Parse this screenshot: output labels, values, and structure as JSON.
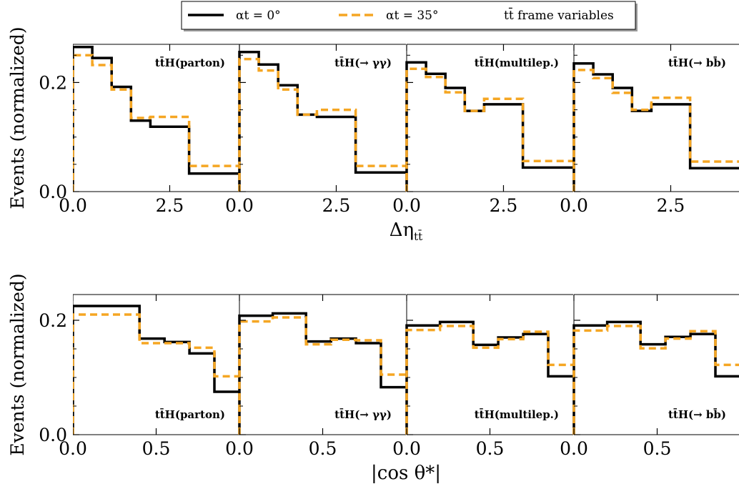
{
  "colors": {
    "alpha0": "#000000",
    "alpha35": "#f5a623"
  },
  "legend": {
    "entries": [
      {
        "label": "αt = 0°",
        "style": "solid",
        "color": "#000000"
      },
      {
        "label": "αt = 35°",
        "style": "dashed",
        "color": "#f5a623"
      }
    ],
    "note": "tt̄ frame variables",
    "placement": "top-center"
  },
  "rows": [
    {
      "ylabel": "Events (normalized)",
      "xlabel": "Δη",
      "xlabel_sub": "tt̄"
    },
    {
      "ylabel": "Events (normalized)",
      "xlabel": "|cos θ*|",
      "xlabel_sub": ""
    }
  ],
  "chart_data": [
    {
      "type": "step",
      "xlabel": "Δη tt̄",
      "ylabel": "Events (normalized)",
      "xlim": [
        0,
        4.3
      ],
      "ylim": [
        0,
        0.27
      ],
      "xticks": [
        0.0,
        2.5
      ],
      "xtick_labels": [
        "0.0",
        "2.5"
      ],
      "yticks": [
        0.0,
        0.2
      ],
      "ytick_labels": [
        "0.0",
        "0.2"
      ],
      "panels": [
        {
          "label": "tt̄H(parton)",
          "label_pos": "top",
          "edges": [
            0,
            0.5,
            1.0,
            1.5,
            2.0,
            3.0,
            4.3
          ],
          "series": [
            {
              "name": "αt = 0°",
              "values": [
                0.265,
                0.245,
                0.192,
                0.13,
                0.119,
                0.033
              ]
            },
            {
              "name": "αt = 35°",
              "values": [
                0.25,
                0.232,
                0.187,
                0.135,
                0.137,
                0.047
              ]
            }
          ]
        },
        {
          "label": "tt̄H(→ γγ)",
          "label_pos": "top",
          "edges": [
            0,
            0.5,
            1.0,
            1.5,
            2.0,
            3.0,
            4.3
          ],
          "series": [
            {
              "name": "αt = 0°",
              "values": [
                0.256,
                0.233,
                0.195,
                0.141,
                0.137,
                0.035
              ]
            },
            {
              "name": "αt = 35°",
              "values": [
                0.243,
                0.222,
                0.187,
                0.141,
                0.15,
                0.047
              ]
            }
          ]
        },
        {
          "label": "tt̄H(multilep.)",
          "label_pos": "top",
          "edges": [
            0,
            0.5,
            1.0,
            1.5,
            2.0,
            3.0,
            4.3
          ],
          "series": [
            {
              "name": "αt = 0°",
              "values": [
                0.237,
                0.216,
                0.19,
                0.148,
                0.16,
                0.044
              ]
            },
            {
              "name": "αt = 35°",
              "values": [
                0.225,
                0.21,
                0.182,
                0.148,
                0.17,
                0.056
              ]
            }
          ]
        },
        {
          "label": "tt̄H(→ bb̄)",
          "label_pos": "top",
          "edges": [
            0,
            0.5,
            1.0,
            1.5,
            2.0,
            3.0,
            4.3
          ],
          "series": [
            {
              "name": "αt = 0°",
              "values": [
                0.235,
                0.215,
                0.19,
                0.148,
                0.16,
                0.043
              ]
            },
            {
              "name": "αt = 35°",
              "values": [
                0.223,
                0.208,
                0.181,
                0.15,
                0.172,
                0.055
              ]
            }
          ]
        }
      ]
    },
    {
      "type": "step",
      "xlabel": "|cos θ*|",
      "ylabel": "Events (normalized)",
      "xlim": [
        0,
        1.0
      ],
      "ylim": [
        0,
        0.245
      ],
      "xticks": [
        0.0,
        0.5
      ],
      "xtick_labels": [
        "0.0",
        "0.5"
      ],
      "yticks": [
        0.0,
        0.2
      ],
      "ytick_labels": [
        "0.0",
        "0.2"
      ],
      "panels": [
        {
          "label": "tt̄H(parton)",
          "label_pos": "bottom",
          "edges": [
            0,
            0.2,
            0.4,
            0.55,
            0.7,
            0.85,
            1.0
          ],
          "series": [
            {
              "name": "αt = 0°",
              "values": [
                0.225,
                0.225,
                0.168,
                0.162,
                0.142,
                0.075
              ]
            },
            {
              "name": "αt = 35°",
              "values": [
                0.21,
                0.21,
                0.16,
                0.16,
                0.152,
                0.102
              ]
            }
          ]
        },
        {
          "label": "tt̄H(→ γγ)",
          "label_pos": "bottom",
          "edges": [
            0,
            0.2,
            0.4,
            0.55,
            0.7,
            0.85,
            1.0
          ],
          "series": [
            {
              "name": "αt = 0°",
              "values": [
                0.208,
                0.212,
                0.163,
                0.168,
                0.16,
                0.083
              ]
            },
            {
              "name": "αt = 35°",
              "values": [
                0.198,
                0.205,
                0.158,
                0.166,
                0.165,
                0.105
              ]
            }
          ]
        },
        {
          "label": "tt̄H(multilep.)",
          "label_pos": "bottom",
          "edges": [
            0,
            0.2,
            0.4,
            0.55,
            0.7,
            0.85,
            1.0
          ],
          "series": [
            {
              "name": "αt = 0°",
              "values": [
                0.191,
                0.197,
                0.157,
                0.17,
                0.176,
                0.102
              ]
            },
            {
              "name": "αt = 35°",
              "values": [
                0.183,
                0.19,
                0.152,
                0.167,
                0.18,
                0.122
              ]
            }
          ]
        },
        {
          "label": "tt̄H(→ bb̄)",
          "label_pos": "bottom",
          "edges": [
            0,
            0.2,
            0.4,
            0.55,
            0.7,
            0.85,
            1.0
          ],
          "series": [
            {
              "name": "αt = 0°",
              "values": [
                0.191,
                0.197,
                0.158,
                0.171,
                0.176,
                0.102
              ]
            },
            {
              "name": "αt = 35°",
              "values": [
                0.182,
                0.19,
                0.151,
                0.168,
                0.181,
                0.122
              ]
            }
          ]
        }
      ]
    }
  ]
}
